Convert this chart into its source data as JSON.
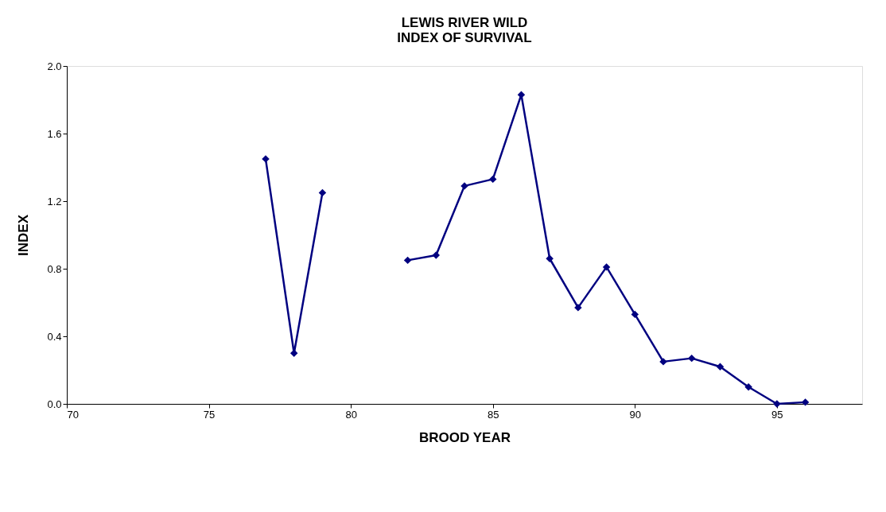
{
  "chart_data": {
    "type": "line",
    "title": [
      "LEWIS RIVER WILD",
      "INDEX OF SURVIVAL"
    ],
    "xlabel": "BROOD YEAR",
    "ylabel": "INDEX",
    "x": [
      77,
      78,
      79,
      80,
      81,
      82,
      83,
      84,
      85,
      86,
      87,
      88,
      89,
      90,
      91,
      92,
      93,
      94,
      95,
      96
    ],
    "series": [
      {
        "color": "#000080",
        "values": [
          1.45,
          0.3,
          1.25,
          null,
          null,
          0.85,
          0.88,
          1.29,
          1.33,
          1.83,
          0.86,
          0.57,
          0.81,
          0.53,
          0.25,
          0.27,
          0.22,
          0.1,
          0.0,
          0.01
        ]
      }
    ],
    "xlim": [
      70,
      98
    ],
    "xticks": [
      70,
      75,
      80,
      85,
      90,
      95
    ],
    "ylim": [
      0,
      2
    ],
    "yticks": [
      {
        "value": 0,
        "label": "0.0"
      },
      {
        "value": 0.4,
        "label": "0.4"
      },
      {
        "value": 0.8,
        "label": "0.8"
      },
      {
        "value": 1.2,
        "label": "1.2"
      },
      {
        "value": 1.6,
        "label": "1.6"
      },
      {
        "value": 2,
        "label": "2.0"
      }
    ],
    "grid": false,
    "legend": false,
    "marker": "diamond",
    "line_style": "solid"
  }
}
